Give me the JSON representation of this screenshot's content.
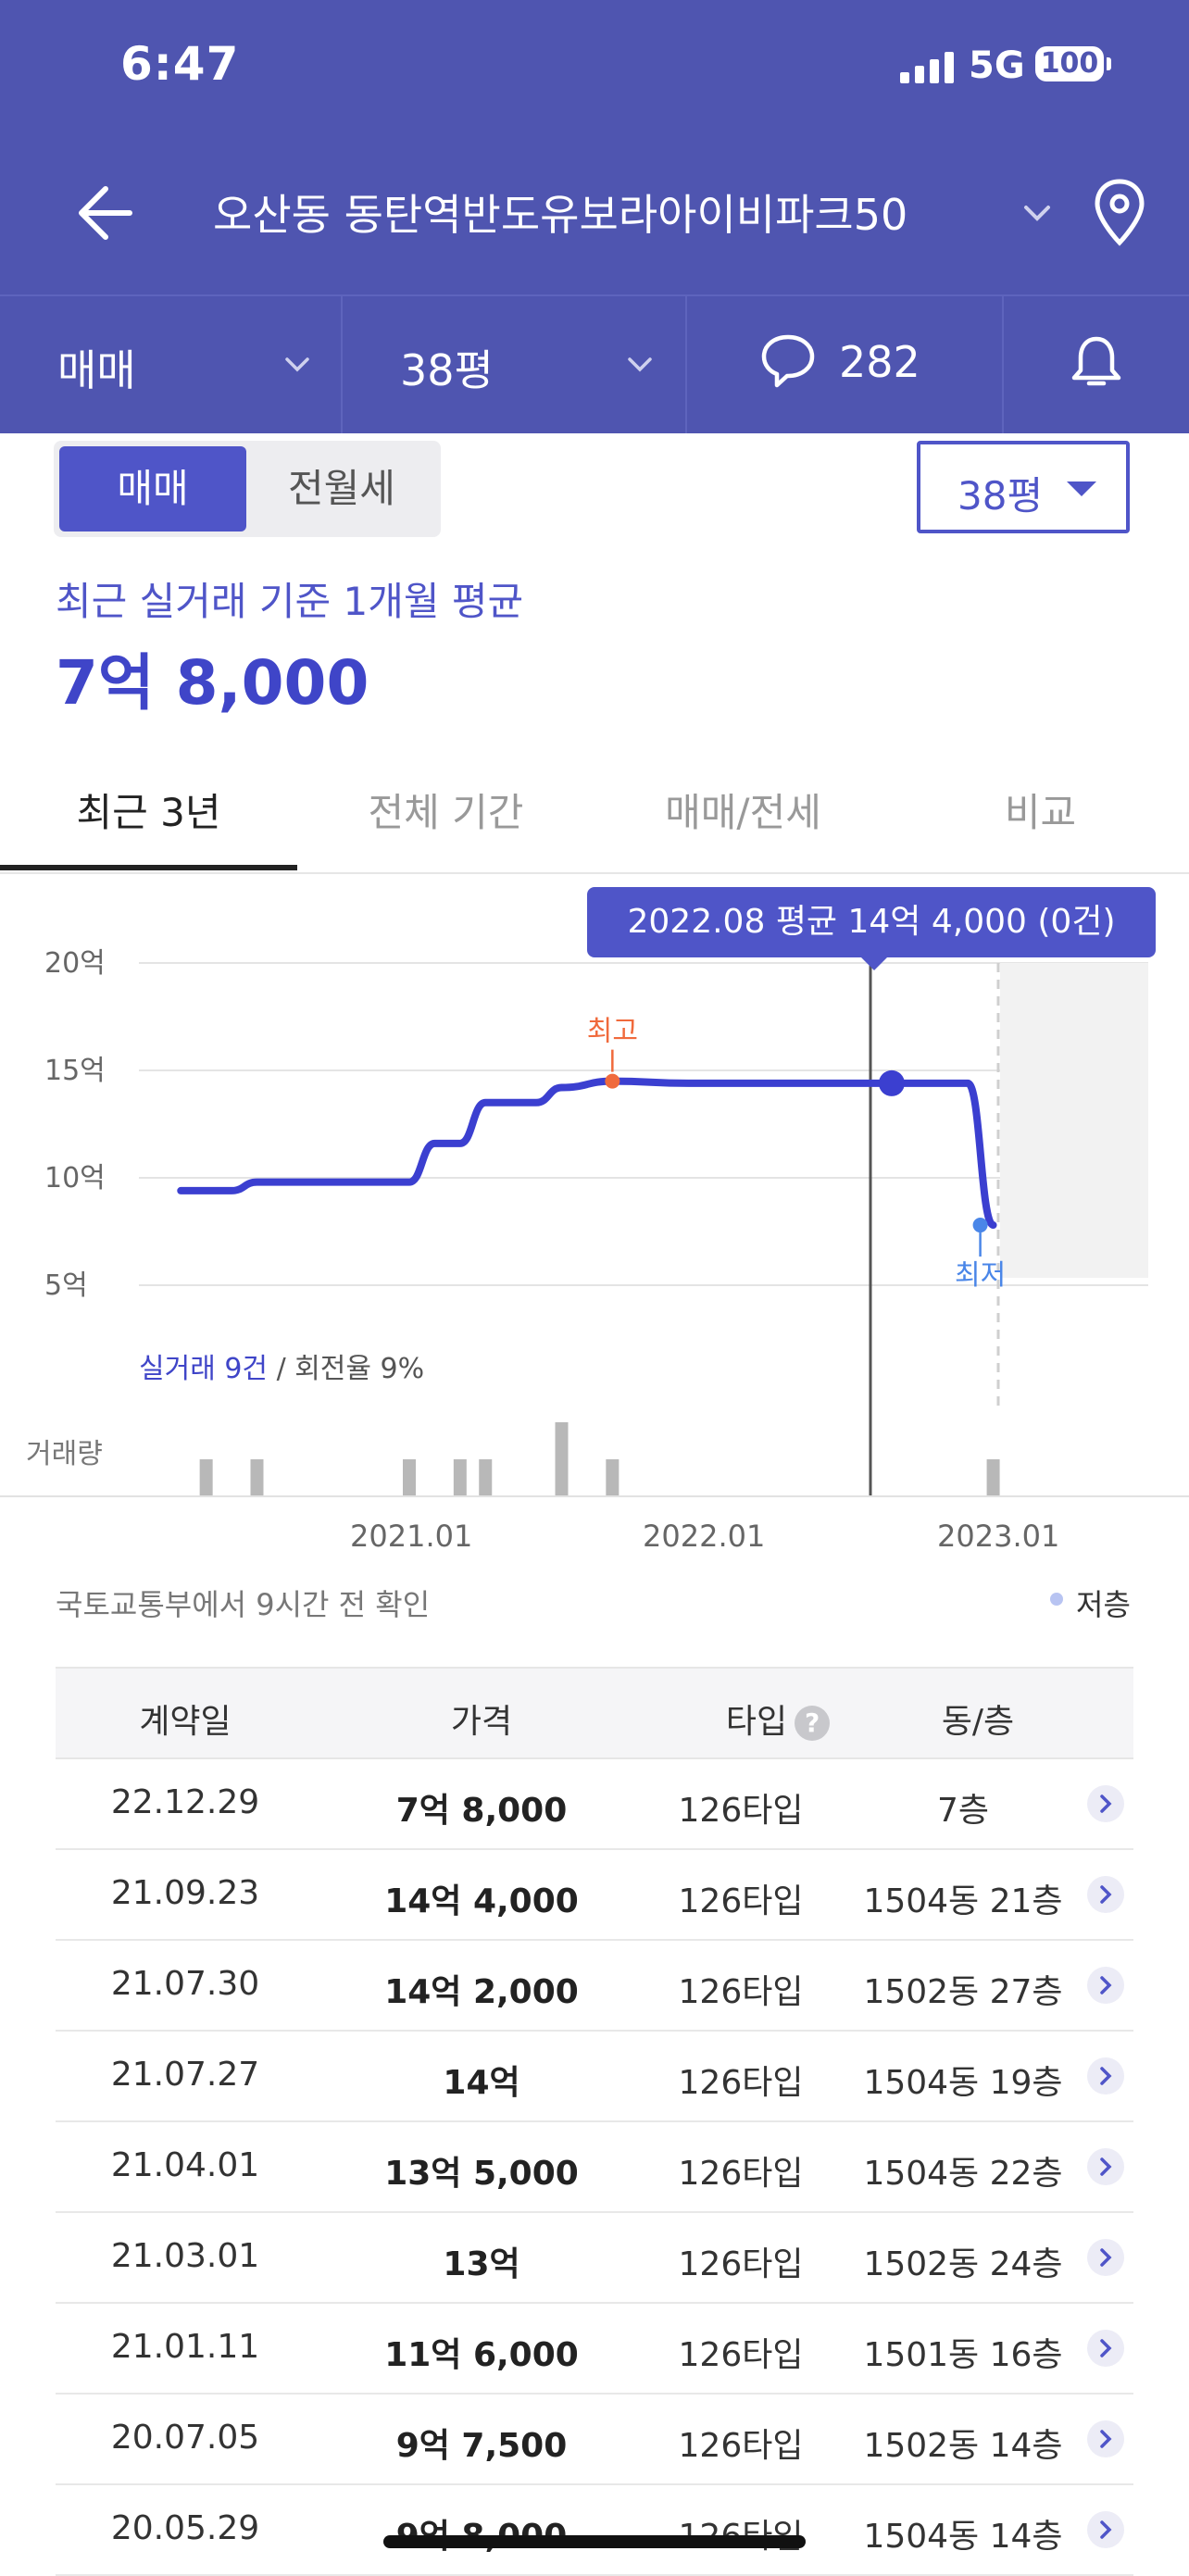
{
  "status": {
    "time": "6:47",
    "network": "5G",
    "battery": "100"
  },
  "nav": {
    "title": "오산동 동탄역반도유보라아이비파크50"
  },
  "segments": {
    "trade": "매매",
    "size": "38평",
    "comments": "282"
  },
  "toggle": {
    "active": "매매",
    "inactive": "전월세"
  },
  "size_select": "38평",
  "avg": {
    "label": "최근 실거래 기준 1개월 평균",
    "value": "7억 8,000"
  },
  "tabs": [
    "최근 3년",
    "전체 기간",
    "매매/전세",
    "비교"
  ],
  "tooltip": "2022.08 평균 14억 4,000 (0건)",
  "chart_data": {
    "type": "line",
    "x_ticks": [
      "2021.01",
      "2022.01",
      "2023.01"
    ],
    "y_ticks": [
      "20억",
      "15억",
      "10억",
      "5억"
    ],
    "ylim": [
      5,
      20
    ],
    "unit": "억",
    "series": [
      {
        "x": [
          "2020.04",
          "2020.06",
          "2020.07",
          "2020.09",
          "2020.12",
          "2021.01",
          "2021.02",
          "2021.03",
          "2021.04",
          "2021.06",
          "2021.07",
          "2021.09",
          "2021.12",
          "2022.06",
          "2022.08",
          "2022.11",
          "2022.12"
        ],
        "values": [
          9.4,
          9.4,
          9.8,
          9.8,
          9.8,
          9.8,
          11.6,
          11.6,
          13.5,
          13.5,
          14.2,
          14.5,
          14.4,
          14.4,
          14.4,
          14.4,
          7.8
        ]
      }
    ],
    "annotations": {
      "high": "최고",
      "low": "최저"
    },
    "volume_label": "거래량",
    "volume": [
      {
        "x": "2020.05",
        "count": 1
      },
      {
        "x": "2020.07",
        "count": 1
      },
      {
        "x": "2021.01",
        "count": 1
      },
      {
        "x": "2021.03",
        "count": 1
      },
      {
        "x": "2021.04",
        "count": 1
      },
      {
        "x": "2021.07",
        "count": 2
      },
      {
        "x": "2021.09",
        "count": 1
      },
      {
        "x": "2022.12",
        "count": 1
      }
    ],
    "stats": {
      "deals": "실거래 9건",
      "turnover": " / 회전율 9%"
    }
  },
  "source_note": "국토교통부에서 9시간 전 확인",
  "legend_low_floor": "저층",
  "table": {
    "headers": {
      "date": "계약일",
      "price": "가격",
      "type": "타입",
      "unit": "동/층"
    },
    "rows": [
      {
        "date": "22.12.29",
        "price": "7억 8,000",
        "type": "126타입",
        "unit": "7층"
      },
      {
        "date": "21.09.23",
        "price": "14억 4,000",
        "type": "126타입",
        "unit": "1504동 21층"
      },
      {
        "date": "21.07.30",
        "price": "14억 2,000",
        "type": "126타입",
        "unit": "1502동 27층"
      },
      {
        "date": "21.07.27",
        "price": "14억",
        "type": "126타입",
        "unit": "1504동 19층"
      },
      {
        "date": "21.04.01",
        "price": "13억 5,000",
        "type": "126타입",
        "unit": "1504동 22층"
      },
      {
        "date": "21.03.01",
        "price": "13억",
        "type": "126타입",
        "unit": "1502동 24층"
      },
      {
        "date": "21.01.11",
        "price": "11억 6,000",
        "type": "126타입",
        "unit": "1501동 16층"
      },
      {
        "date": "20.07.05",
        "price": "9억 7,500",
        "type": "126타입",
        "unit": "1502동 14층"
      },
      {
        "date": "20.05.29",
        "price": "9억 8,000",
        "type": "126타입",
        "unit": "1504동 14층"
      }
    ]
  }
}
